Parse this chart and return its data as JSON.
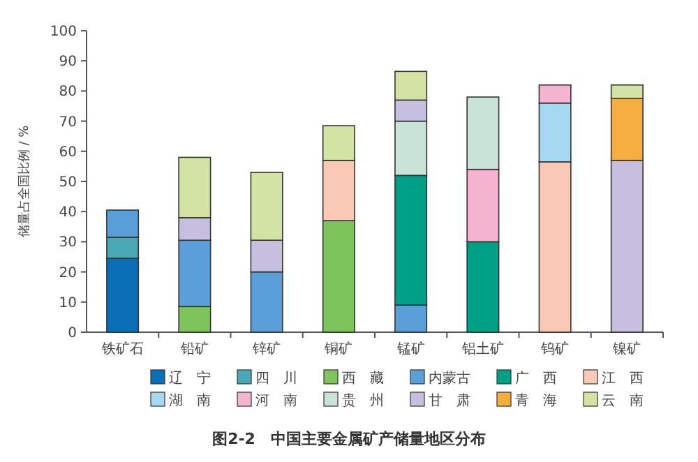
{
  "chart_data": {
    "type": "bar",
    "stacked": true,
    "title": "图2-2　中国主要金属矿产储量地区分布",
    "ylabel": "储量占全国比例 / %",
    "categories": [
      "铁矿石",
      "铅矿",
      "锌矿",
      "铜矿",
      "锰矿",
      "铝土矿",
      "钨矿",
      "镍矿"
    ],
    "ylim": [
      0,
      100
    ],
    "yticks": [
      0,
      10,
      20,
      30,
      40,
      50,
      60,
      70,
      80,
      90,
      100
    ],
    "grid": false,
    "legend": "bottom",
    "series": [
      {
        "name": "辽　宁",
        "color": "#0b6fb8",
        "values": [
          24.5,
          null,
          null,
          null,
          null,
          null,
          null,
          null
        ]
      },
      {
        "name": "四　川",
        "color": "#4aa8b5",
        "values": [
          7,
          null,
          null,
          null,
          null,
          null,
          null,
          null
        ]
      },
      {
        "name": "西　藏",
        "color": "#7dc45a",
        "values": [
          null,
          8.5,
          null,
          37,
          null,
          null,
          null,
          null
        ]
      },
      {
        "name": "内蒙古",
        "color": "#5b9fd8",
        "values": [
          9,
          22,
          20,
          null,
          9,
          null,
          null,
          null
        ]
      },
      {
        "name": "广　西",
        "color": "#00a087",
        "values": [
          null,
          null,
          null,
          null,
          43,
          30,
          null,
          null
        ]
      },
      {
        "name": "江　西",
        "color": "#f9c9b6",
        "values": [
          null,
          null,
          null,
          20,
          null,
          null,
          56.5,
          null
        ]
      },
      {
        "name": "湖　南",
        "color": "#a6d8f2",
        "values": [
          null,
          null,
          null,
          null,
          null,
          null,
          19.5,
          null
        ]
      },
      {
        "name": "河　南",
        "color": "#f4b4cf",
        "values": [
          null,
          null,
          null,
          null,
          null,
          24,
          6,
          null
        ]
      },
      {
        "name": "贵　州",
        "color": "#c9e4d6",
        "values": [
          null,
          null,
          null,
          null,
          18,
          24,
          null,
          null
        ]
      },
      {
        "name": "甘　肃",
        "color": "#c7bfe0",
        "values": [
          null,
          7.5,
          10.5,
          null,
          7,
          null,
          null,
          57
        ]
      },
      {
        "name": "青　海",
        "color": "#f6ae3f",
        "values": [
          null,
          null,
          null,
          null,
          null,
          null,
          null,
          20.5
        ]
      },
      {
        "name": "云　南",
        "color": "#d2e3a3",
        "values": [
          null,
          20,
          22.5,
          11.5,
          9.5,
          null,
          null,
          4.5
        ]
      }
    ]
  }
}
